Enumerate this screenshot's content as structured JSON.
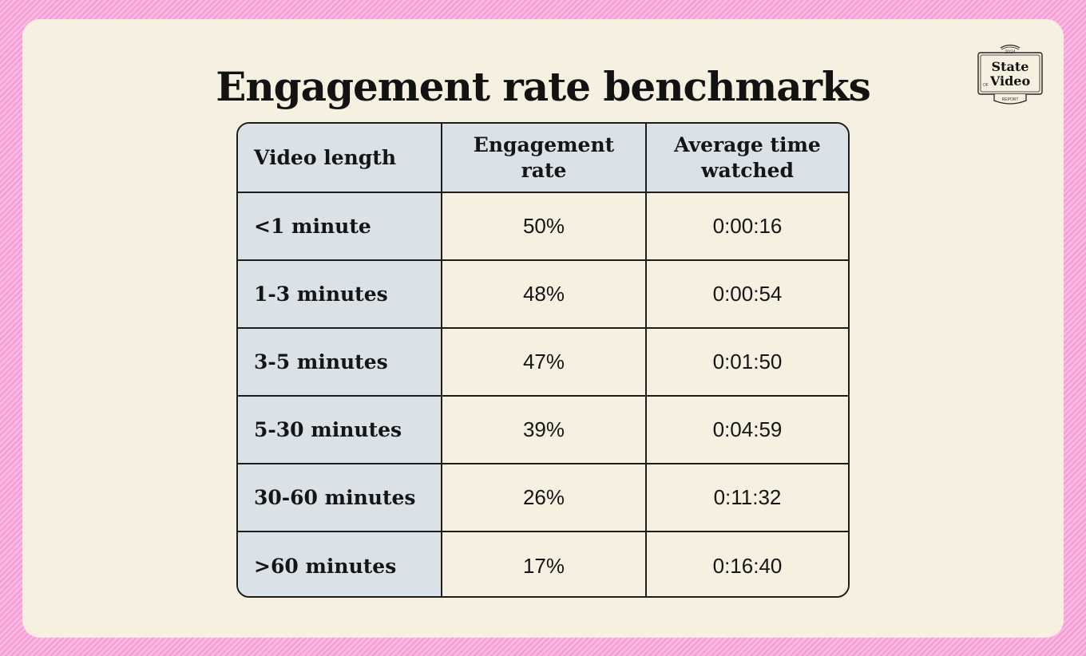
{
  "title": "Engagement rate benchmarks",
  "logo": {
    "year": "2024",
    "line1": "State",
    "of": "OF",
    "line2": "Video",
    "line3": "REPORT"
  },
  "chart_data": {
    "type": "table",
    "title": "Engagement rate benchmarks",
    "columns": [
      "Video length",
      "Engagement rate",
      "Average time watched"
    ],
    "rows": [
      {
        "length": "<1 minute",
        "rate": "50%",
        "time": "0:00:16"
      },
      {
        "length": "1-3 minutes",
        "rate": "48%",
        "time": "0:00:54"
      },
      {
        "length": "3-5 minutes",
        "rate": "47%",
        "time": "0:01:50"
      },
      {
        "length": "5-30 minutes",
        "rate": "39%",
        "time": "0:04:59"
      },
      {
        "length": "30-60 minutes",
        "rate": "26%",
        "time": "0:11:32"
      },
      {
        "length": ">60 minutes",
        "rate": "17%",
        "time": "0:16:40"
      }
    ]
  },
  "colors": {
    "background_pink": "#f7a9d9",
    "card": "#f6f0e1",
    "header_cell": "#dbe2e7",
    "border": "#1d1d1d"
  }
}
